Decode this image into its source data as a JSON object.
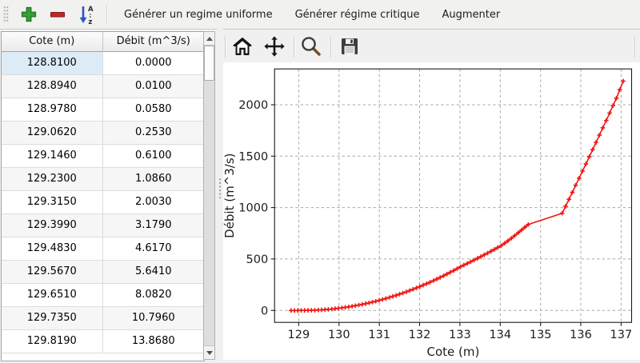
{
  "toolbar": {
    "icons": [
      "add-icon",
      "remove-icon",
      "sort-az-icon"
    ],
    "actions": [
      "Générer un regime uniforme",
      "Générer régime critique",
      "Augmenter"
    ]
  },
  "table": {
    "columns": [
      "Cote (m)",
      "Débit (m^3/s)"
    ],
    "rows": [
      [
        "128.8100",
        "0.0000"
      ],
      [
        "128.8940",
        "0.0100"
      ],
      [
        "128.9780",
        "0.0580"
      ],
      [
        "129.0620",
        "0.2530"
      ],
      [
        "129.1460",
        "0.6100"
      ],
      [
        "129.2300",
        "1.0860"
      ],
      [
        "129.3150",
        "2.0030"
      ],
      [
        "129.3990",
        "3.1790"
      ],
      [
        "129.4830",
        "4.6170"
      ],
      [
        "129.5670",
        "5.6410"
      ],
      [
        "129.6510",
        "8.0820"
      ],
      [
        "129.7350",
        "10.7960"
      ],
      [
        "129.8190",
        "13.8680"
      ]
    ],
    "selected": {
      "row": 0,
      "col": 0
    }
  },
  "plot_toolbar": {
    "icons": [
      "home-icon",
      "pan-icon",
      "zoom-icon",
      "save-icon"
    ]
  },
  "chart_data": {
    "type": "line",
    "title": "",
    "xlabel": "Cote (m)",
    "ylabel": "Débit (m^3/s)",
    "xticks": [
      129,
      130,
      131,
      132,
      133,
      134,
      135,
      136,
      137
    ],
    "yticks": [
      0,
      500,
      1000,
      1500,
      2000
    ],
    "xlim": [
      128.4,
      137.26
    ],
    "ylim": [
      -116,
      2348
    ],
    "grid": true,
    "legend": false,
    "line_color": "#f01510",
    "marker": "plus",
    "series": [
      {
        "name": "Débit",
        "points": [
          [
            128.81,
            0.0
          ],
          [
            128.894,
            0.01
          ],
          [
            128.978,
            0.058
          ],
          [
            129.062,
            0.253
          ],
          [
            129.146,
            0.61
          ],
          [
            129.23,
            1.086
          ],
          [
            129.315,
            2.003
          ],
          [
            129.399,
            3.179
          ],
          [
            129.483,
            4.617
          ],
          [
            129.567,
            5.641
          ],
          [
            129.651,
            8.082
          ],
          [
            129.735,
            10.796
          ],
          [
            129.819,
            13.868
          ],
          [
            129.903,
            17.3
          ],
          [
            129.987,
            21.2
          ],
          [
            130.071,
            25.4
          ],
          [
            130.155,
            30.0
          ],
          [
            130.239,
            35.0
          ],
          [
            130.324,
            40.4
          ],
          [
            130.408,
            46.2
          ],
          [
            130.492,
            52.4
          ],
          [
            130.576,
            59.0
          ],
          [
            130.66,
            66.0
          ],
          [
            130.744,
            73.4
          ],
          [
            130.828,
            81.2
          ],
          [
            130.912,
            89.4
          ],
          [
            130.996,
            98.0
          ],
          [
            131.08,
            107.0
          ],
          [
            131.164,
            116.4
          ],
          [
            131.248,
            126.2
          ],
          [
            131.333,
            136.4
          ],
          [
            131.417,
            147.0
          ],
          [
            131.501,
            158.0
          ],
          [
            131.585,
            169.4
          ],
          [
            131.669,
            181.2
          ],
          [
            131.753,
            193.4
          ],
          [
            131.837,
            206.0
          ],
          [
            131.921,
            219.0
          ],
          [
            132.005,
            232.4
          ],
          [
            132.089,
            246.2
          ],
          [
            132.173,
            260.4
          ],
          [
            132.257,
            275.0
          ],
          [
            132.342,
            290.0
          ],
          [
            132.426,
            305.4
          ],
          [
            132.51,
            321.2
          ],
          [
            132.594,
            337.4
          ],
          [
            132.678,
            354.0
          ],
          [
            132.762,
            371.0
          ],
          [
            132.846,
            388.4
          ],
          [
            132.93,
            406.2
          ],
          [
            133.014,
            424.4
          ],
          [
            133.098,
            440.4
          ],
          [
            133.182,
            456.6
          ],
          [
            133.266,
            473.0
          ],
          [
            133.351,
            489.6
          ],
          [
            133.435,
            506.4
          ],
          [
            133.519,
            523.4
          ],
          [
            133.603,
            540.6
          ],
          [
            133.687,
            558.0
          ],
          [
            133.771,
            575.6
          ],
          [
            133.855,
            593.4
          ],
          [
            133.939,
            611.4
          ],
          [
            134.023,
            629.6
          ],
          [
            134.107,
            652.6
          ],
          [
            134.191,
            676.6
          ],
          [
            134.276,
            701.6
          ],
          [
            134.36,
            727.6
          ],
          [
            134.444,
            754.6
          ],
          [
            134.528,
            781.6
          ],
          [
            134.612,
            808.6
          ],
          [
            134.696,
            835.6
          ],
          [
            135.537,
            945
          ],
          [
            135.621,
            1012
          ],
          [
            135.705,
            1080
          ],
          [
            135.789,
            1148
          ],
          [
            135.873,
            1217
          ],
          [
            135.957,
            1286
          ],
          [
            136.042,
            1355
          ],
          [
            136.126,
            1424
          ],
          [
            136.21,
            1494
          ],
          [
            136.294,
            1564
          ],
          [
            136.378,
            1634
          ],
          [
            136.462,
            1705
          ],
          [
            136.546,
            1776
          ],
          [
            136.63,
            1847
          ],
          [
            136.714,
            1919
          ],
          [
            136.798,
            1991
          ],
          [
            136.883,
            2063
          ],
          [
            136.967,
            2146
          ],
          [
            137.051,
            2230
          ]
        ]
      }
    ]
  }
}
